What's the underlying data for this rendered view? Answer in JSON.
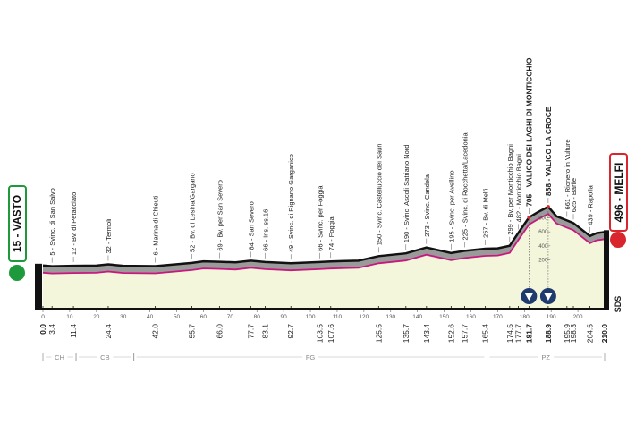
{
  "chart_data": {
    "type": "area",
    "start_label": "15 - VASTO",
    "finish_label": "496 - MELFI",
    "side_label": "SDS",
    "x": [
      0,
      3.4,
      11.4,
      20,
      24.4,
      30,
      42,
      55.7,
      60,
      66,
      72,
      77.7,
      83.1,
      92.7,
      103.5,
      107.6,
      118,
      125.5,
      135.7,
      143.4,
      152.6,
      157.7,
      165.4,
      170,
      174.5,
      177.7,
      181.7,
      185,
      188.9,
      192,
      195.9,
      198.3,
      204.5,
      207,
      210
    ],
    "values": [
      15,
      5,
      12,
      14,
      32,
      12,
      6,
      52,
      75,
      69,
      60,
      84,
      66,
      49,
      66,
      74,
      85,
      150,
      190,
      273,
      195,
      225,
      257,
      262,
      299,
      482,
      705,
      780,
      858,
      720,
      661,
      625,
      439,
      480,
      496
    ],
    "xlim": [
      0,
      210
    ],
    "ylim": [
      0,
      1000
    ],
    "xticks": [
      0,
      10,
      20,
      30,
      40,
      50,
      60,
      70,
      80,
      90,
      100,
      110,
      120,
      130,
      140,
      150,
      160,
      170,
      180,
      190,
      200
    ],
    "yticks": [
      200,
      400,
      600,
      800
    ],
    "start_km": {
      "value": 0,
      "label": "0.0"
    },
    "finish_km": {
      "value": 210,
      "label": "210.0"
    },
    "waypoints": [
      {
        "km": 3.4,
        "label": "5 - Svinc. di San Salvo"
      },
      {
        "km": 11.4,
        "label": "12 - Bv. di Petacciato"
      },
      {
        "km": 24.4,
        "label": "32 - Termoli"
      },
      {
        "km": {
          "value": 42,
          "label": "42.0"
        },
        "label": "6 - Marina di Chieuti"
      },
      {
        "km": 55.7,
        "label": "52 - Bv. di Lesina/Gargano"
      },
      {
        "km": {
          "value": 66,
          "label": "66.0"
        },
        "label": "69 - Bv. per San Severo"
      },
      {
        "km": 77.7,
        "label": "84 - San Severo"
      },
      {
        "km": 83.1,
        "label": "66 - Ins. ss.16"
      },
      {
        "km": 92.7,
        "label": "49 - Svinc. di Rignano Garganico"
      },
      {
        "km": 103.5,
        "label": "66 - Svinc. per Foggia"
      },
      {
        "km": 107.6,
        "label": "74 - Foggia"
      },
      {
        "km": 125.5,
        "label": "150 - Svinc. Castelluccio dei Sauri"
      },
      {
        "km": 135.7,
        "label": "190 - Svinc. Ascoli Satriano Nord"
      },
      {
        "km": 143.4,
        "label": "273 - Svinc. Candela"
      },
      {
        "km": 152.6,
        "label": "195 - Svinc. per Avellino"
      },
      {
        "km": 157.7,
        "label": "225 - Svinc. di Rocchetta/Lacedonia"
      },
      {
        "km": 165.4,
        "label": "257 - Bv. di Melfi"
      },
      {
        "km": 174.5,
        "label": "299 - Bv. per Monticchio Bagni"
      },
      {
        "km": 177.7,
        "label": "482 - Monticchio Bagni"
      },
      {
        "km": 181.7,
        "label": "705 - VALICO DEI LAGHI DI MONTICCHIO",
        "highlight": true
      },
      {
        "km": 188.9,
        "label": "858 - VALICO LA CROCE",
        "highlight": true
      },
      {
        "km": 195.9,
        "label": "661 - Rionero in Vulture"
      },
      {
        "km": 198.3,
        "label": "625 - Barile"
      },
      {
        "km": 204.5,
        "label": "439 - Rapolla"
      }
    ],
    "regions": [
      {
        "name": "CH",
        "km": [
          0,
          12.4
        ]
      },
      {
        "name": "CB",
        "km": [
          12.4,
          34
        ]
      },
      {
        "name": "FG",
        "km": [
          34,
          166
        ]
      },
      {
        "name": "PZ",
        "km": [
          166,
          210
        ]
      }
    ],
    "colors": {
      "line": "#c8187f",
      "band": "#9a9a9a",
      "fill": "#f4f6dc",
      "start": "#1e9a3c",
      "finish": "#d9262e",
      "climb": "#1f3a6e"
    }
  }
}
